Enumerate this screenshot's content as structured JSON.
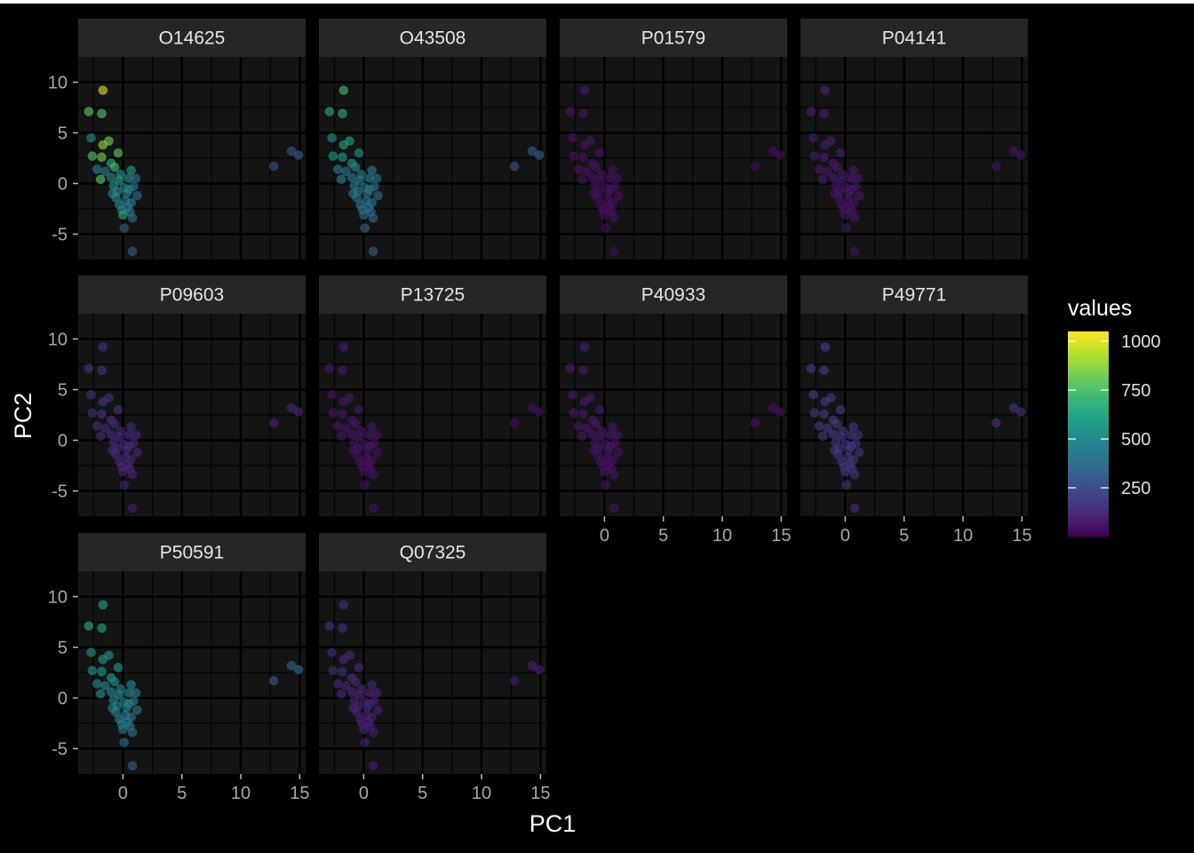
{
  "chart_data": {
    "type": "scatter",
    "facet_by": "protein",
    "xlabel": "PC1",
    "ylabel": "PC2",
    "xlim": [
      -3.8,
      15.5
    ],
    "ylim": [
      -7.5,
      12.5
    ],
    "x_ticks": [
      0,
      5,
      10,
      15
    ],
    "y_ticks": [
      -5,
      0,
      5,
      10
    ],
    "grid": true,
    "colorscale": "viridis",
    "colors": {
      "low": "#440154",
      "mid": "#21908C",
      "high": "#FDE725",
      "panel": "#141414",
      "strip": "#262626",
      "background": "#000000"
    },
    "legend": {
      "title": "values",
      "position": "right",
      "range": [
        0,
        1050
      ],
      "ticks": [
        250,
        500,
        750,
        1000
      ],
      "tick_labels": [
        "250",
        "500",
        "750",
        "1000"
      ]
    },
    "points": [
      [
        -1.7,
        9.2
      ],
      [
        -2.9,
        7.1
      ],
      [
        -1.8,
        6.9
      ],
      [
        -2.7,
        4.5
      ],
      [
        -1.7,
        3.8
      ],
      [
        -1.2,
        4.2
      ],
      [
        -2.6,
        2.7
      ],
      [
        -1.8,
        2.6
      ],
      [
        -0.4,
        3.0
      ],
      [
        -1.0,
        2.0
      ],
      [
        -2.2,
        1.4
      ],
      [
        -1.5,
        1.2
      ],
      [
        0.7,
        1.3
      ],
      [
        -0.7,
        1.6
      ],
      [
        -1.9,
        0.4
      ],
      [
        -1.0,
        0.6
      ],
      [
        -0.3,
        0.3
      ],
      [
        0.5,
        0.5
      ],
      [
        1.1,
        0.5
      ],
      [
        -0.8,
        -0.2
      ],
      [
        0.1,
        -0.4
      ],
      [
        0.9,
        -0.3
      ],
      [
        -0.5,
        -0.8
      ],
      [
        0.3,
        -1.0
      ],
      [
        1.2,
        -1.2
      ],
      [
        -0.6,
        -1.4
      ],
      [
        0.2,
        -1.7
      ],
      [
        0.7,
        -1.9
      ],
      [
        -0.3,
        -2.1
      ],
      [
        0.4,
        -2.4
      ],
      [
        -0.1,
        -2.6
      ],
      [
        0.6,
        -2.8
      ],
      [
        0.0,
        -3.1
      ],
      [
        0.8,
        -3.4
      ],
      [
        0.1,
        -4.4
      ],
      [
        0.8,
        -6.7
      ],
      [
        12.8,
        1.7
      ],
      [
        14.3,
        3.2
      ],
      [
        14.9,
        2.8
      ],
      [
        -0.9,
        -1.0
      ],
      [
        -0.2,
        0.9
      ],
      [
        0.5,
        -0.6
      ]
    ],
    "facets": [
      {
        "name": "O14625",
        "values": [
          1000,
          800,
          770,
          520,
          880,
          840,
          760,
          840,
          790,
          660,
          480,
          420,
          590,
          710,
          780,
          470,
          590,
          530,
          410,
          560,
          510,
          430,
          540,
          450,
          380,
          500,
          430,
          460,
          510,
          420,
          480,
          400,
          650,
          380,
          340,
          300,
          240,
          290,
          300,
          480,
          540,
          470
        ]
      },
      {
        "name": "O43508",
        "values": [
          720,
          650,
          640,
          520,
          600,
          600,
          580,
          590,
          560,
          560,
          450,
          420,
          480,
          500,
          500,
          430,
          460,
          440,
          400,
          440,
          430,
          400,
          420,
          400,
          380,
          400,
          390,
          400,
          410,
          380,
          390,
          370,
          400,
          360,
          330,
          300,
          280,
          300,
          320,
          410,
          430,
          410
        ]
      },
      {
        "name": "P01579",
        "values": [
          70,
          60,
          60,
          50,
          55,
          55,
          55,
          55,
          50,
          50,
          45,
          45,
          50,
          50,
          50,
          45,
          45,
          45,
          40,
          45,
          45,
          40,
          45,
          40,
          40,
          40,
          40,
          40,
          40,
          40,
          40,
          40,
          40,
          40,
          35,
          30,
          30,
          35,
          35,
          40,
          45,
          40
        ]
      },
      {
        "name": "P04141",
        "values": [
          100,
          90,
          90,
          80,
          85,
          85,
          80,
          85,
          80,
          80,
          70,
          70,
          75,
          75,
          75,
          70,
          70,
          70,
          65,
          70,
          65,
          65,
          65,
          65,
          60,
          65,
          60,
          65,
          65,
          60,
          60,
          60,
          60,
          60,
          55,
          50,
          50,
          55,
          55,
          65,
          70,
          65
        ]
      },
      {
        "name": "P09603",
        "values": [
          170,
          160,
          160,
          150,
          150,
          150,
          140,
          150,
          140,
          140,
          130,
          130,
          130,
          130,
          130,
          125,
          125,
          125,
          120,
          125,
          120,
          120,
          120,
          120,
          115,
          120,
          115,
          120,
          120,
          115,
          115,
          115,
          115,
          110,
          105,
          100,
          100,
          105,
          105,
          120,
          125,
          120
        ]
      },
      {
        "name": "P13725",
        "values": [
          80,
          70,
          70,
          60,
          65,
          65,
          65,
          65,
          60,
          60,
          55,
          55,
          60,
          60,
          60,
          55,
          55,
          55,
          50,
          55,
          55,
          50,
          55,
          50,
          50,
          50,
          50,
          50,
          50,
          50,
          50,
          50,
          50,
          50,
          45,
          40,
          40,
          45,
          45,
          50,
          55,
          50
        ]
      },
      {
        "name": "P40933",
        "values": [
          90,
          80,
          80,
          70,
          75,
          75,
          70,
          75,
          70,
          70,
          65,
          65,
          65,
          65,
          65,
          60,
          60,
          60,
          55,
          60,
          60,
          55,
          60,
          55,
          55,
          55,
          55,
          55,
          55,
          55,
          55,
          55,
          55,
          55,
          50,
          45,
          45,
          50,
          50,
          55,
          60,
          55
        ]
      },
      {
        "name": "P49771",
        "values": [
          210,
          200,
          200,
          190,
          190,
          190,
          180,
          190,
          180,
          180,
          170,
          170,
          170,
          170,
          170,
          165,
          165,
          165,
          160,
          165,
          160,
          160,
          160,
          160,
          155,
          160,
          155,
          160,
          160,
          155,
          155,
          155,
          155,
          150,
          145,
          140,
          140,
          145,
          145,
          160,
          165,
          160
        ]
      },
      {
        "name": "P50591",
        "values": [
          620,
          640,
          610,
          540,
          570,
          560,
          560,
          580,
          560,
          550,
          490,
          470,
          500,
          510,
          510,
          470,
          490,
          480,
          450,
          480,
          470,
          450,
          470,
          450,
          420,
          460,
          440,
          450,
          460,
          430,
          440,
          420,
          430,
          400,
          380,
          320,
          300,
          340,
          350,
          460,
          480,
          460
        ]
      },
      {
        "name": "Q07325",
        "values": [
          150,
          140,
          140,
          130,
          130,
          130,
          125,
          130,
          125,
          125,
          115,
          115,
          115,
          115,
          115,
          110,
          110,
          110,
          105,
          110,
          105,
          105,
          105,
          105,
          100,
          105,
          100,
          105,
          105,
          100,
          100,
          100,
          100,
          95,
          90,
          85,
          85,
          90,
          90,
          105,
          110,
          105
        ]
      }
    ]
  }
}
